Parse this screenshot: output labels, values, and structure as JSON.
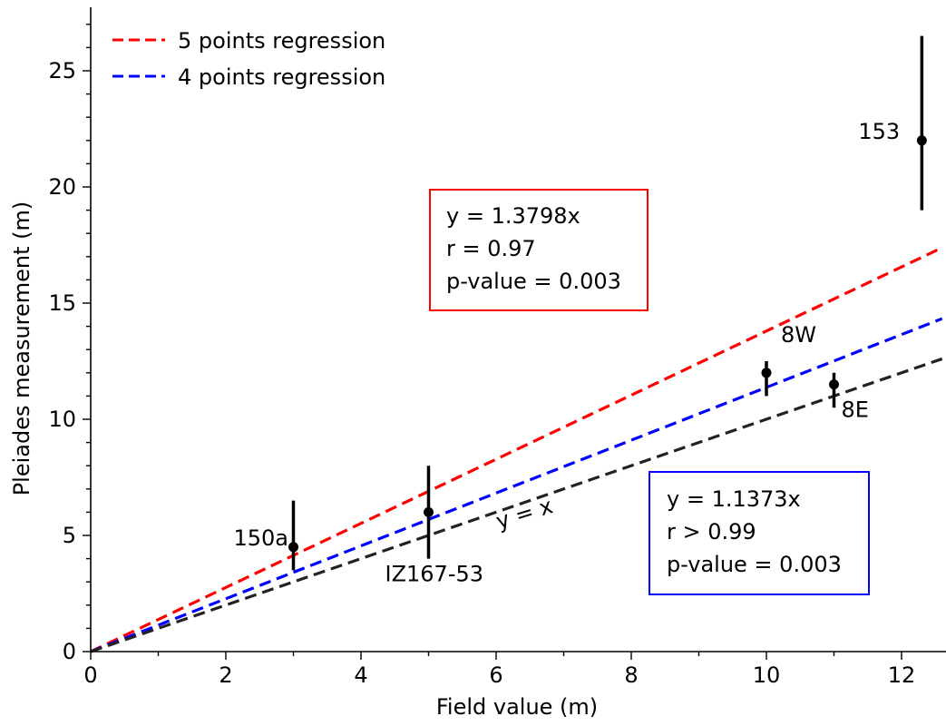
{
  "chart_data": {
    "type": "scatter",
    "xlabel": "Field value (m)",
    "ylabel": "Pleiades measurement (m)",
    "xlim": [
      0,
      12.6
    ],
    "ylim": [
      0,
      27.5
    ],
    "xticks": [
      0,
      2,
      4,
      6,
      8,
      10,
      12
    ],
    "yticks": [
      0,
      5,
      10,
      15,
      20,
      25
    ],
    "grid": false,
    "legend_position": "top-left",
    "points": [
      {
        "label": "150a",
        "x": 3,
        "y": 4.5,
        "err_low": 3.5,
        "err_high": 6.5
      },
      {
        "label": "IZ167-53",
        "x": 5,
        "y": 6,
        "err_low": 4,
        "err_high": 8
      },
      {
        "label": "8W",
        "x": 10,
        "y": 12,
        "err_low": 11,
        "err_high": 12.5
      },
      {
        "label": "8E",
        "x": 11,
        "y": 11.5,
        "err_low": 10.5,
        "err_high": 12
      },
      {
        "label": "153",
        "x": 12.3,
        "y": 22,
        "err_low": 19,
        "err_high": 26.5
      }
    ],
    "series": [
      {
        "name": "5 points regression",
        "color": "#ff0000",
        "slope": 1.3798,
        "style": "dashed"
      },
      {
        "name": "4 points regression",
        "color": "#0000ff",
        "slope": 1.1373,
        "style": "dashed"
      },
      {
        "name": "",
        "color": "#222222",
        "slope": 1.0,
        "style": "dashed"
      }
    ],
    "annotations": {
      "identity_label": "y = x",
      "red_box": [
        "y = 1.3798x",
        "r = 0.97",
        "p-value = 0.003"
      ],
      "blue_box": [
        "y = 1.1373x",
        "r > 0.99",
        "p-value = 0.003"
      ]
    }
  }
}
